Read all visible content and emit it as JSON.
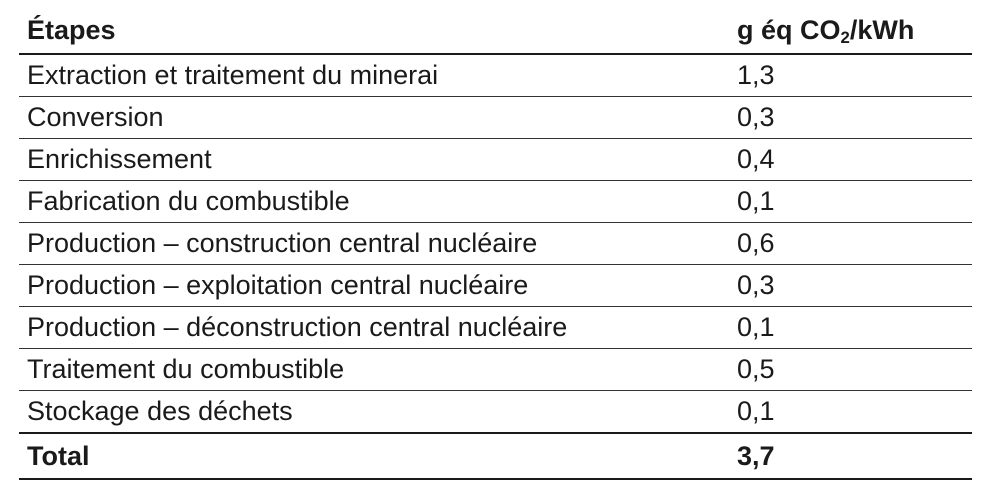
{
  "table": {
    "header": {
      "etapes": "Étapes",
      "unit_prefix": "g éq CO",
      "unit_sub": "2",
      "unit_suffix": "/kWh"
    },
    "rows": [
      {
        "etape": "Extraction et traitement du minerai",
        "value": "1,3"
      },
      {
        "etape": "Conversion",
        "value": "0,3"
      },
      {
        "etape": "Enrichissement",
        "value": "0,4"
      },
      {
        "etape": "Fabrication du combustible",
        "value": "0,1"
      },
      {
        "etape": "Production – construction central nucléaire",
        "value": "0,6"
      },
      {
        "etape": "Production – exploitation central nucléaire",
        "value": "0,3"
      },
      {
        "etape": "Production – déconstruction central nucléaire",
        "value": "0,1"
      },
      {
        "etape": "Traitement du combustible",
        "value": "0,5"
      },
      {
        "etape": "Stockage des déchets",
        "value": "0,1"
      }
    ],
    "total": {
      "label": "Total",
      "value": "3,7"
    }
  }
}
